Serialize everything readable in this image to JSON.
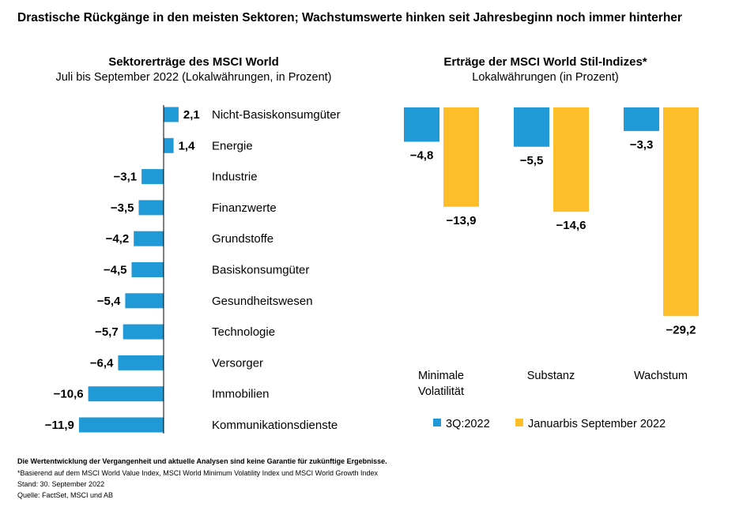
{
  "title": "Drastische Rückgänge in den meisten Sektoren; Wachstumswerte hinken seit Jahresbeginn noch immer hinterher",
  "chart_data": [
    {
      "type": "bar",
      "orientation": "horizontal",
      "title": "Sektorerträge des MSCI World",
      "subtitle": "Juli bis September 2022 (Lokalwährungen, in Prozent)",
      "categories": [
        "Nicht-Basiskonsumgüter",
        "Energie",
        "Industrie",
        "Finanzwerte",
        "Grundstoffe",
        "Basiskonsumgüter",
        "Gesundheitswesen",
        "Technologie",
        "Versorger",
        "Immobilien",
        "Kommunikationsdienste"
      ],
      "values": [
        2.1,
        1.4,
        -3.1,
        -3.5,
        -4.2,
        -4.5,
        -5.4,
        -5.7,
        -6.4,
        -10.6,
        -11.9
      ],
      "labels": [
        "2,1",
        "1,4",
        "−3,1",
        "−3,5",
        "−4,2",
        "−4,5",
        "−5,4",
        "−5,7",
        "−6,4",
        "−10,6",
        "−11,9"
      ],
      "color": "#1f9ad6"
    },
    {
      "type": "bar",
      "title": "Erträge der MSCI World Stil-Indizes*",
      "subtitle": "Lokalwährungen (in Prozent)",
      "categories": [
        [
          "Minimale",
          "Volatilität"
        ],
        [
          "Substanz"
        ],
        [
          "Wachstum"
        ]
      ],
      "series": [
        {
          "name": "3Q:2022",
          "color": "#1f9ad6",
          "values": [
            -4.8,
            -5.5,
            -3.3
          ],
          "labels": [
            "−4,8",
            "−5,5",
            "−3,3"
          ]
        },
        {
          "name": "Januarbis September 2022",
          "color": "#fdbe2a",
          "values": [
            -13.9,
            -14.6,
            -29.2
          ],
          "labels": [
            "−13,9",
            "−14,6",
            "−29,2"
          ]
        }
      ],
      "legend": "bottom"
    }
  ],
  "footnotes": {
    "disclaimer": "Die Wertentwicklung der Vergangenheit und aktuelle Analysen sind keine Garantie für zukünftige Ergebnisse.",
    "note": "*Basierend auf dem MSCI World Value Index, MSCI World Minimum Volatility Index und MSCI World Growth Index",
    "date": "Stand: 30. September 2022",
    "source": "Quelle: FactSet, MSCI und AB"
  }
}
